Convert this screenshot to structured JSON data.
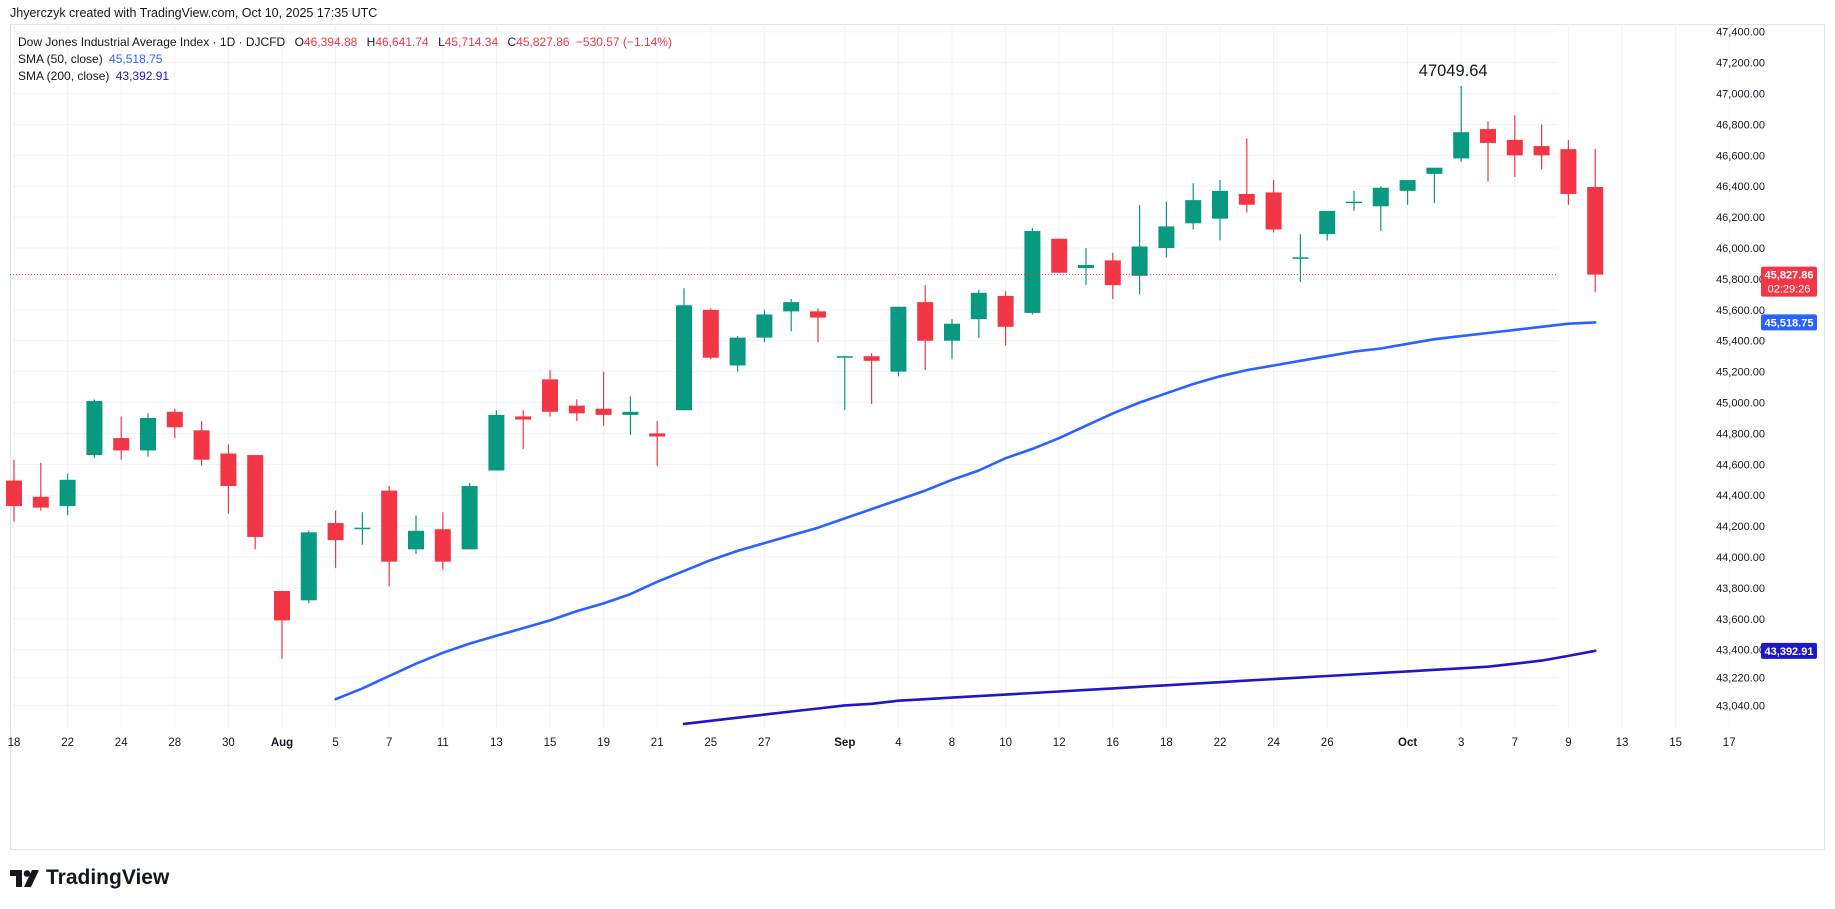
{
  "attribution": "Jhyerczyk created with TradingView.com, Oct 10, 2025 17:35 UTC",
  "brand": "TradingView",
  "legend": {
    "symbol": "Dow Jones Industrial Average Index · 1D · DJCFD",
    "open_label": "O",
    "open": "46,394.88",
    "high_label": "H",
    "high": "46,641.74",
    "low_label": "L",
    "low": "45,714.34",
    "close_label": "C",
    "close": "45,827.86",
    "change": "−530.57 (−1.14%)",
    "sma50_label": "SMA (50, close)",
    "sma50_value": "45,518.75",
    "sma200_label": "SMA (200, close)",
    "sma200_value": "43,392.91"
  },
  "price_labels": {
    "last_price": "45,827.86",
    "countdown": "02:29:26",
    "sma50": "45,518.75",
    "sma200": "43,392.91"
  },
  "colors": {
    "up": "#089981",
    "down": "#f23645",
    "sma50": "#2962ff",
    "sma200": "#1d17c7",
    "grid": "#f0f3fa",
    "text": "#131722"
  },
  "chart_data": {
    "type": "candlestick",
    "annotation": "47049.64",
    "ylim": [
      42900,
      47450
    ],
    "y_ticks": [
      "43,040.00",
      "43,220.00",
      "43,400.00",
      "43,600.00",
      "43,800.00",
      "44,000.00",
      "44,200.00",
      "44,400.00",
      "44,600.00",
      "44,800.00",
      "45,000.00",
      "45,200.00",
      "45,400.00",
      "45,600.00",
      "45,800.00",
      "46,000.00",
      "46,200.00",
      "46,400.00",
      "46,600.00",
      "46,800.00",
      "47,000.00",
      "47,200.00",
      "47,400.00"
    ],
    "x_ticks": [
      "18",
      "22",
      "24",
      "28",
      "30",
      "Aug",
      "5",
      "7",
      "11",
      "13",
      "15",
      "19",
      "21",
      "25",
      "27",
      "Sep",
      "4",
      "8",
      "10",
      "12",
      "16",
      "18",
      "22",
      "24",
      "26",
      "Oct",
      "3",
      "7",
      "9",
      "13",
      "15",
      "17"
    ],
    "candles": [
      {
        "date": "2025-07-18",
        "o": 44495,
        "h": 44630,
        "l": 44230,
        "c": 44330
      },
      {
        "date": "2025-07-21",
        "o": 44390,
        "h": 44610,
        "l": 44300,
        "c": 44320
      },
      {
        "date": "2025-07-22",
        "o": 44330,
        "h": 44540,
        "l": 44270,
        "c": 44500
      },
      {
        "date": "2025-07-23",
        "o": 44660,
        "h": 45020,
        "l": 44640,
        "c": 45010
      },
      {
        "date": "2025-07-24",
        "o": 44770,
        "h": 44910,
        "l": 44630,
        "c": 44690
      },
      {
        "date": "2025-07-25",
        "o": 44690,
        "h": 44930,
        "l": 44650,
        "c": 44900
      },
      {
        "date": "2025-07-28",
        "o": 44940,
        "h": 44960,
        "l": 44770,
        "c": 44840
      },
      {
        "date": "2025-07-29",
        "o": 44820,
        "h": 44880,
        "l": 44590,
        "c": 44630
      },
      {
        "date": "2025-07-30",
        "o": 44670,
        "h": 44730,
        "l": 44280,
        "c": 44460
      },
      {
        "date": "2025-07-31",
        "o": 44660,
        "h": 44660,
        "l": 44050,
        "c": 44130
      },
      {
        "date": "2025-08-01",
        "o": 43780,
        "h": 43780,
        "l": 43340,
        "c": 43590
      },
      {
        "date": "2025-08-04",
        "o": 43720,
        "h": 44170,
        "l": 43700,
        "c": 44160
      },
      {
        "date": "2025-08-05",
        "o": 44220,
        "h": 44300,
        "l": 43930,
        "c": 44110
      },
      {
        "date": "2025-08-06",
        "o": 44190,
        "h": 44290,
        "l": 44080,
        "c": 44190
      },
      {
        "date": "2025-08-07",
        "o": 44430,
        "h": 44460,
        "l": 43810,
        "c": 43970
      },
      {
        "date": "2025-08-08",
        "o": 44050,
        "h": 44270,
        "l": 44020,
        "c": 44170
      },
      {
        "date": "2025-08-11",
        "o": 44180,
        "h": 44290,
        "l": 43920,
        "c": 43970
      },
      {
        "date": "2025-08-12",
        "o": 44050,
        "h": 44480,
        "l": 44050,
        "c": 44460
      },
      {
        "date": "2025-08-13",
        "o": 44560,
        "h": 44950,
        "l": 44560,
        "c": 44920
      },
      {
        "date": "2025-08-14",
        "o": 44910,
        "h": 44950,
        "l": 44700,
        "c": 44890
      },
      {
        "date": "2025-08-15",
        "o": 45150,
        "h": 45210,
        "l": 44910,
        "c": 44940
      },
      {
        "date": "2025-08-18",
        "o": 44980,
        "h": 45020,
        "l": 44880,
        "c": 44930
      },
      {
        "date": "2025-08-19",
        "o": 44960,
        "h": 45200,
        "l": 44850,
        "c": 44920
      },
      {
        "date": "2025-08-20",
        "o": 44920,
        "h": 45040,
        "l": 44790,
        "c": 44940
      },
      {
        "date": "2025-08-21",
        "o": 44800,
        "h": 44880,
        "l": 44590,
        "c": 44780
      },
      {
        "date": "2025-08-22",
        "o": 44950,
        "h": 45740,
        "l": 44950,
        "c": 45630
      },
      {
        "date": "2025-08-25",
        "o": 45600,
        "h": 45610,
        "l": 45280,
        "c": 45290
      },
      {
        "date": "2025-08-26",
        "o": 45240,
        "h": 45430,
        "l": 45200,
        "c": 45420
      },
      {
        "date": "2025-08-27",
        "o": 45420,
        "h": 45600,
        "l": 45390,
        "c": 45570
      },
      {
        "date": "2025-08-28",
        "o": 45590,
        "h": 45670,
        "l": 45460,
        "c": 45650
      },
      {
        "date": "2025-08-29",
        "o": 45590,
        "h": 45610,
        "l": 45390,
        "c": 45550
      },
      {
        "date": "2025-09-02",
        "o": 45290,
        "h": 45300,
        "l": 44950,
        "c": 45300
      },
      {
        "date": "2025-09-03",
        "o": 45300,
        "h": 45320,
        "l": 44990,
        "c": 45270
      },
      {
        "date": "2025-09-04",
        "o": 45200,
        "h": 45620,
        "l": 45170,
        "c": 45620
      },
      {
        "date": "2025-09-05",
        "o": 45650,
        "h": 45760,
        "l": 45210,
        "c": 45400
      },
      {
        "date": "2025-09-08",
        "o": 45400,
        "h": 45540,
        "l": 45280,
        "c": 45510
      },
      {
        "date": "2025-09-09",
        "o": 45540,
        "h": 45730,
        "l": 45420,
        "c": 45710
      },
      {
        "date": "2025-09-10",
        "o": 45690,
        "h": 45720,
        "l": 45370,
        "c": 45490
      },
      {
        "date": "2025-09-11",
        "o": 45580,
        "h": 46130,
        "l": 45570,
        "c": 46110
      },
      {
        "date": "2025-09-12",
        "o": 46060,
        "h": 46060,
        "l": 45840,
        "c": 45840
      },
      {
        "date": "2025-09-15",
        "o": 45870,
        "h": 46000,
        "l": 45760,
        "c": 45890
      },
      {
        "date": "2025-09-16",
        "o": 45920,
        "h": 45970,
        "l": 45670,
        "c": 45760
      },
      {
        "date": "2025-09-17",
        "o": 45820,
        "h": 46280,
        "l": 45700,
        "c": 46010
      },
      {
        "date": "2025-09-18",
        "o": 46000,
        "h": 46300,
        "l": 45940,
        "c": 46140
      },
      {
        "date": "2025-09-19",
        "o": 46160,
        "h": 46420,
        "l": 46120,
        "c": 46310
      },
      {
        "date": "2025-09-22",
        "o": 46190,
        "h": 46440,
        "l": 46050,
        "c": 46370
      },
      {
        "date": "2025-09-23",
        "o": 46350,
        "h": 46710,
        "l": 46230,
        "c": 46280
      },
      {
        "date": "2025-09-24",
        "o": 46360,
        "h": 46440,
        "l": 46100,
        "c": 46120
      },
      {
        "date": "2025-09-25",
        "o": 45930,
        "h": 46090,
        "l": 45780,
        "c": 45940
      },
      {
        "date": "2025-09-26",
        "o": 46090,
        "h": 46240,
        "l": 46050,
        "c": 46240
      },
      {
        "date": "2025-09-29",
        "o": 46300,
        "h": 46370,
        "l": 46240,
        "c": 46300
      },
      {
        "date": "2025-09-30",
        "o": 46270,
        "h": 46400,
        "l": 46110,
        "c": 46390
      },
      {
        "date": "2025-10-01",
        "o": 46370,
        "h": 46430,
        "l": 46280,
        "c": 46440
      },
      {
        "date": "2025-10-02",
        "o": 46480,
        "h": 46520,
        "l": 46290,
        "c": 46520
      },
      {
        "date": "2025-10-03",
        "o": 46580,
        "h": 47049.64,
        "l": 46560,
        "c": 46750
      },
      {
        "date": "2025-10-06",
        "o": 46770,
        "h": 46820,
        "l": 46430,
        "c": 46680
      },
      {
        "date": "2025-10-07",
        "o": 46700,
        "h": 46860,
        "l": 46460,
        "c": 46600
      },
      {
        "date": "2025-10-08",
        "o": 46660,
        "h": 46800,
        "l": 46510,
        "c": 46600
      },
      {
        "date": "2025-10-09",
        "o": 46640,
        "h": 46700,
        "l": 46280,
        "c": 46350
      },
      {
        "date": "2025-10-10",
        "o": 46394.88,
        "h": 46641.74,
        "l": 45714.34,
        "c": 45827.86
      }
    ],
    "sma50": [
      43080,
      43150,
      43230,
      43310,
      43380,
      43440,
      43490,
      43540,
      43590,
      43650,
      43700,
      43760,
      43840,
      43910,
      43980,
      44040,
      44090,
      44140,
      44190,
      44250,
      44310,
      44370,
      44430,
      44500,
      44560,
      44640,
      44700,
      44770,
      44850,
      44930,
      45000,
      45060,
      45120,
      45170,
      45210,
      45240,
      45270,
      45300,
      45330,
      45350,
      45380,
      45410,
      45430,
      45450,
      45470,
      45490,
      45510,
      45518.75
    ],
    "sma200": [
      42920,
      42940,
      42960,
      42980,
      43000,
      43020,
      43040,
      43050,
      43070,
      43080,
      43090,
      43100,
      43110,
      43120,
      43130,
      43140,
      43150,
      43160,
      43170,
      43180,
      43190,
      43200,
      43210,
      43220,
      43230,
      43240,
      43250,
      43260,
      43270,
      43280,
      43290,
      43310,
      43330,
      43360,
      43392.91
    ]
  }
}
